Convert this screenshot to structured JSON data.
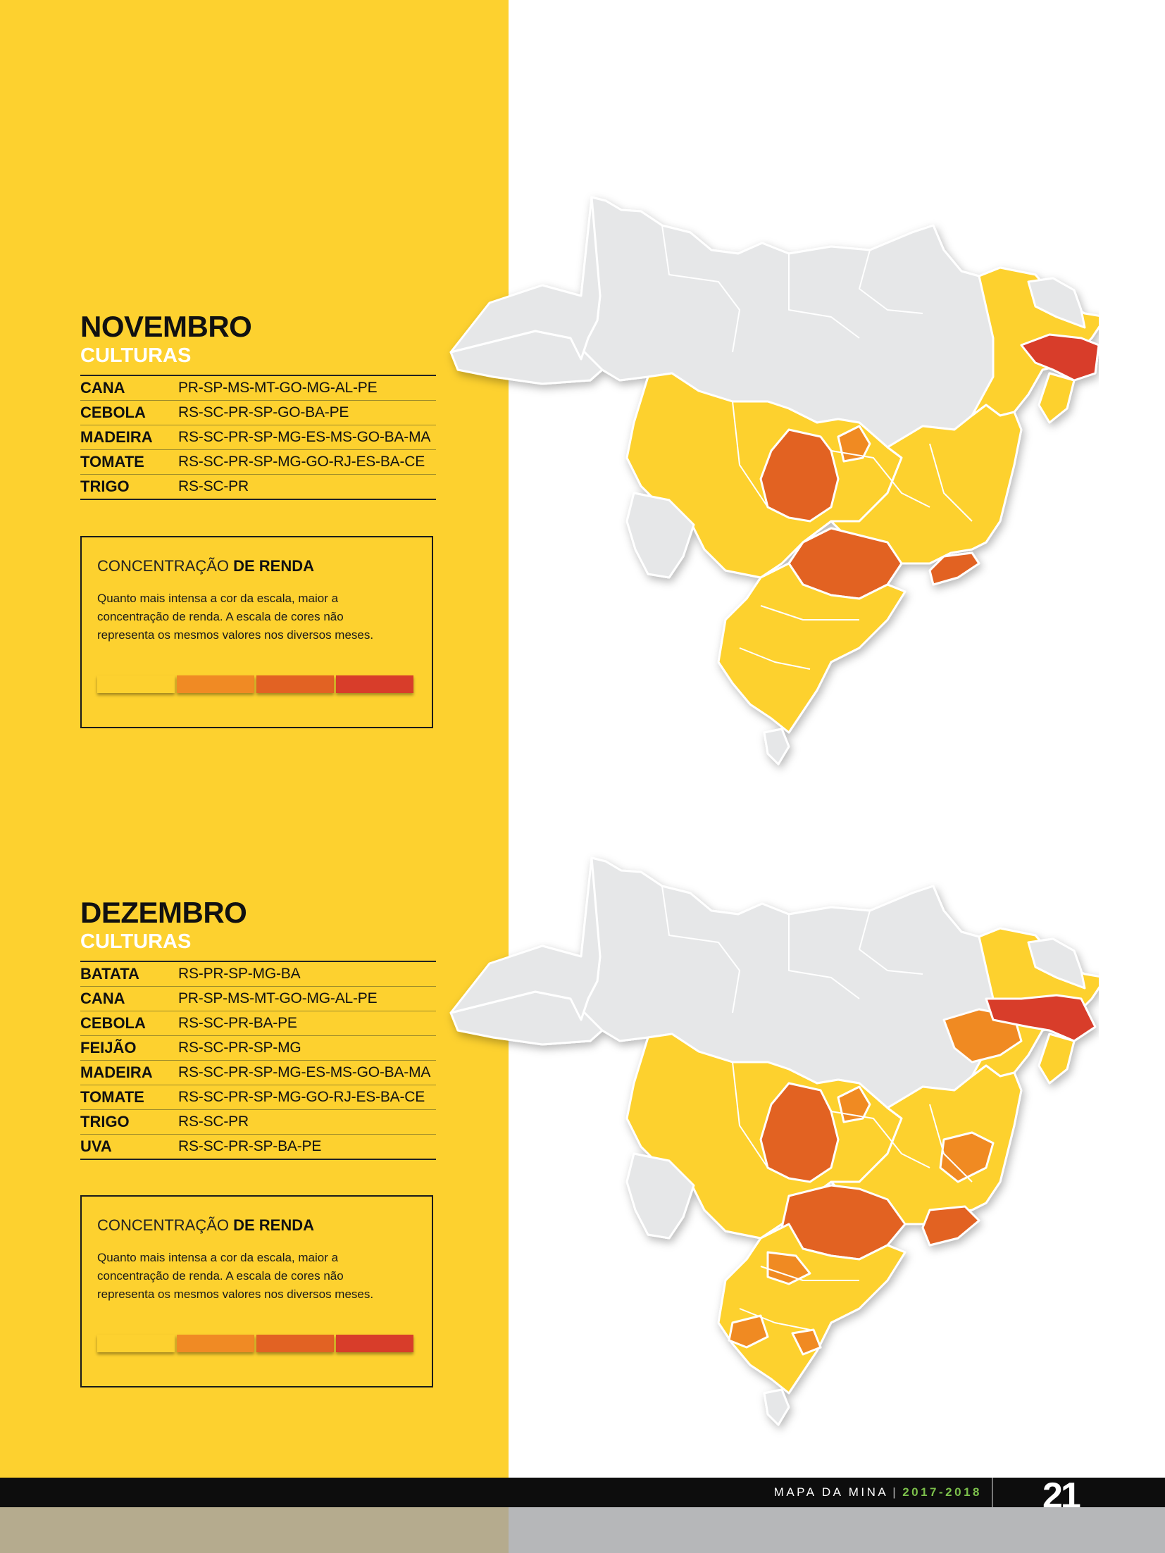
{
  "colors": {
    "panel": "#fdd12f",
    "map_gray": "#e6e7e8",
    "scale": [
      "#fdd12f",
      "#f08a24",
      "#e26223",
      "#d83d2a"
    ]
  },
  "novembro": {
    "title": "NOVEMBRO",
    "subtitle": "CULTURAS",
    "crops": [
      {
        "name": "CANA",
        "states": "PR-SP-MS-MT-GO-MG-AL-PE"
      },
      {
        "name": "CEBOLA",
        "states": "RS-SC-PR-SP-GO-BA-PE"
      },
      {
        "name": "MADEIRA",
        "states": "RS-SC-PR-SP-MG-ES-MS-GO-BA-MA"
      },
      {
        "name": "TOMATE",
        "states": "RS-SC-PR-SP-MG-GO-RJ-ES-BA-CE"
      },
      {
        "name": "TRIGO",
        "states": "RS-SC-PR"
      }
    ]
  },
  "dezembro": {
    "title": "DEZEMBRO",
    "subtitle": "CULTURAS",
    "crops": [
      {
        "name": "BATATA",
        "states": "RS-PR-SP-MG-BA"
      },
      {
        "name": "CANA",
        "states": "PR-SP-MS-MT-GO-MG-AL-PE"
      },
      {
        "name": "CEBOLA",
        "states": "RS-SC-PR-BA-PE"
      },
      {
        "name": "FEIJÃO",
        "states": "RS-SC-PR-SP-MG"
      },
      {
        "name": "MADEIRA",
        "states": "RS-SC-PR-SP-MG-ES-MS-GO-BA-MA"
      },
      {
        "name": "TOMATE",
        "states": "RS-SC-PR-SP-MG-GO-RJ-ES-BA-CE"
      },
      {
        "name": "TRIGO",
        "states": "RS-SC-PR"
      },
      {
        "name": "UVA",
        "states": "RS-SC-PR-SP-BA-PE"
      }
    ]
  },
  "legend": {
    "title_light": "CONCENTRAÇÃO ",
    "title_bold": "DE RENDA",
    "text": "Quanto mais intensa a cor da escala, maior a concentração de renda. A escala de cores não representa os mesmos valores nos diversos meses."
  },
  "footer": {
    "magazine": "MAPA DA MINA",
    "separator": "|",
    "year": "2017-2018",
    "page": "21"
  }
}
